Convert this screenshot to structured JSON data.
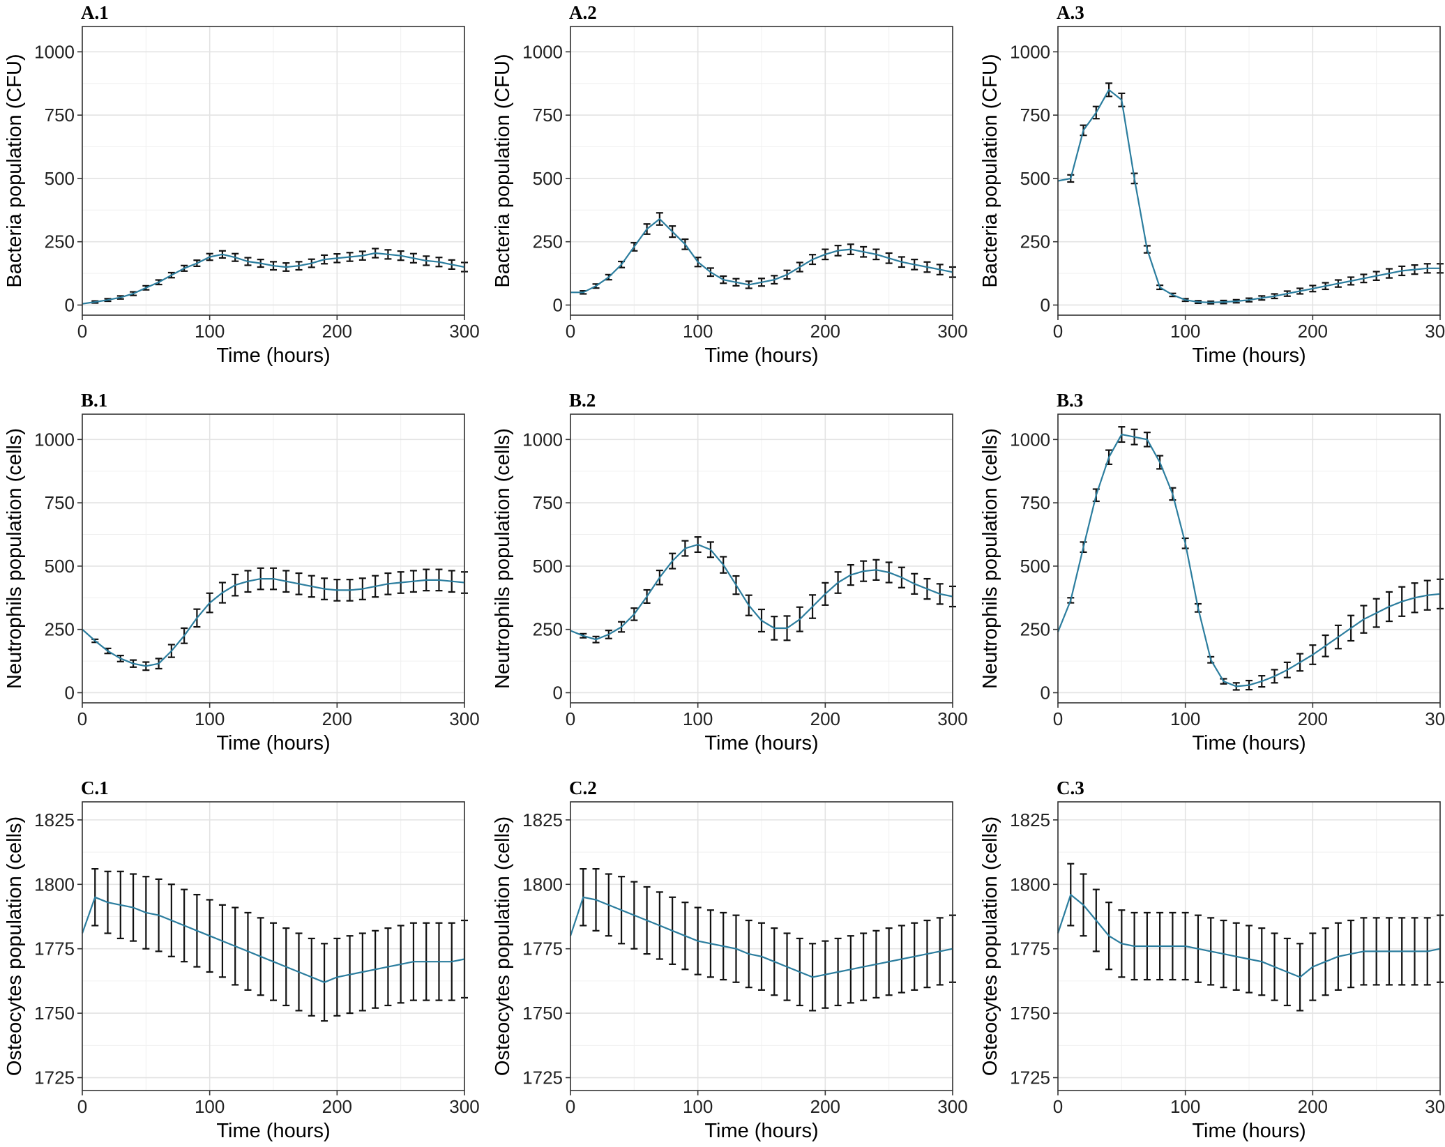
{
  "figure": {
    "series_color": "#2b7d9e",
    "errorbar_color": "#111111",
    "grid_color": "#e3e3e3"
  },
  "chart_data": [
    {
      "id": "A1",
      "panel": "A.1",
      "type": "line",
      "xlabel": "Time (hours)",
      "ylabel": "Bacteria population (CFU)",
      "xlim": [
        0,
        300
      ],
      "ylim": [
        -40,
        1100
      ],
      "xticks": [
        0,
        100,
        200,
        300
      ],
      "yticks": [
        0,
        250,
        500,
        750,
        1000
      ],
      "x": [
        0,
        10,
        20,
        30,
        40,
        50,
        60,
        70,
        80,
        90,
        100,
        110,
        120,
        130,
        140,
        150,
        160,
        170,
        180,
        190,
        200,
        210,
        220,
        230,
        240,
        250,
        260,
        270,
        280,
        290,
        300
      ],
      "y": [
        5,
        12,
        20,
        30,
        45,
        68,
        90,
        118,
        145,
        165,
        190,
        200,
        188,
        172,
        165,
        155,
        150,
        155,
        165,
        180,
        185,
        190,
        195,
        205,
        200,
        195,
        185,
        175,
        170,
        160,
        150
      ],
      "err": [
        3,
        4,
        5,
        6,
        7,
        8,
        9,
        10,
        11,
        12,
        13,
        14,
        15,
        15,
        15,
        16,
        16,
        16,
        16,
        17,
        17,
        17,
        17,
        18,
        18,
        18,
        18,
        18,
        18,
        18,
        18
      ]
    },
    {
      "id": "A2",
      "panel": "A.2",
      "type": "line",
      "xlabel": "Time (hours)",
      "ylabel": "Bacteria population (CFU)",
      "xlim": [
        0,
        300
      ],
      "ylim": [
        -40,
        1100
      ],
      "xticks": [
        0,
        100,
        200,
        300
      ],
      "yticks": [
        0,
        250,
        500,
        750,
        1000
      ],
      "x": [
        0,
        10,
        20,
        30,
        40,
        50,
        60,
        70,
        80,
        90,
        100,
        110,
        120,
        130,
        140,
        150,
        160,
        170,
        180,
        190,
        200,
        210,
        220,
        230,
        240,
        250,
        260,
        270,
        280,
        290,
        300
      ],
      "y": [
        50,
        50,
        75,
        110,
        160,
        230,
        300,
        340,
        290,
        240,
        170,
        130,
        100,
        90,
        80,
        90,
        100,
        120,
        150,
        180,
        200,
        215,
        220,
        210,
        200,
        185,
        170,
        160,
        150,
        140,
        130
      ],
      "err": [
        5,
        6,
        8,
        10,
        12,
        16,
        20,
        24,
        22,
        20,
        18,
        16,
        14,
        14,
        14,
        15,
        16,
        17,
        18,
        19,
        20,
        20,
        20,
        20,
        20,
        20,
        20,
        20,
        20,
        20,
        20
      ]
    },
    {
      "id": "A3",
      "panel": "A.3",
      "type": "line",
      "xlabel": "Time (hours)",
      "ylabel": "Bacteria population (CFU)",
      "xlim": [
        0,
        300
      ],
      "ylim": [
        -40,
        1100
      ],
      "xticks": [
        0,
        100,
        200,
        300
      ],
      "yticks": [
        0,
        250,
        500,
        750,
        1000
      ],
      "x": [
        0,
        10,
        20,
        30,
        40,
        50,
        60,
        70,
        80,
        90,
        100,
        110,
        120,
        130,
        140,
        150,
        160,
        170,
        180,
        190,
        200,
        210,
        220,
        230,
        240,
        250,
        260,
        270,
        280,
        290,
        300
      ],
      "y": [
        490,
        500,
        690,
        760,
        850,
        810,
        500,
        220,
        70,
        40,
        20,
        12,
        10,
        12,
        15,
        20,
        28,
        35,
        45,
        55,
        65,
        75,
        85,
        95,
        105,
        115,
        125,
        135,
        140,
        145,
        145
      ],
      "err": [
        8,
        14,
        20,
        24,
        26,
        26,
        20,
        14,
        8,
        6,
        5,
        5,
        5,
        6,
        6,
        7,
        8,
        9,
        10,
        11,
        12,
        13,
        14,
        15,
        16,
        17,
        18,
        18,
        18,
        18,
        18
      ]
    },
    {
      "id": "B1",
      "panel": "B.1",
      "type": "line",
      "xlabel": "Time (hours)",
      "ylabel": "Neutrophils population (cells)",
      "xlim": [
        0,
        300
      ],
      "ylim": [
        -40,
        1100
      ],
      "xticks": [
        0,
        100,
        200,
        300
      ],
      "yticks": [
        0,
        250,
        500,
        750,
        1000
      ],
      "x": [
        0,
        10,
        20,
        30,
        40,
        50,
        60,
        70,
        80,
        90,
        100,
        110,
        120,
        130,
        140,
        150,
        160,
        170,
        180,
        190,
        200,
        210,
        220,
        230,
        240,
        250,
        260,
        270,
        280,
        290,
        300
      ],
      "y": [
        250,
        205,
        165,
        135,
        115,
        105,
        115,
        165,
        225,
        295,
        355,
        395,
        425,
        440,
        450,
        450,
        440,
        430,
        420,
        410,
        405,
        405,
        410,
        420,
        430,
        435,
        440,
        445,
        445,
        440,
        435
      ],
      "err": [
        3,
        6,
        10,
        12,
        14,
        16,
        20,
        25,
        30,
        35,
        38,
        40,
        42,
        42,
        42,
        42,
        42,
        42,
        42,
        42,
        42,
        42,
        42,
        42,
        42,
        42,
        42,
        42,
        42,
        42,
        42
      ]
    },
    {
      "id": "B2",
      "panel": "B.2",
      "type": "line",
      "xlabel": "Time (hours)",
      "ylabel": "Neutrophils population (cells)",
      "xlim": [
        0,
        300
      ],
      "ylim": [
        -40,
        1100
      ],
      "xticks": [
        0,
        100,
        200,
        300
      ],
      "yticks": [
        0,
        250,
        500,
        750,
        1000
      ],
      "x": [
        0,
        10,
        20,
        30,
        40,
        50,
        60,
        70,
        80,
        90,
        100,
        110,
        120,
        130,
        140,
        150,
        160,
        170,
        180,
        190,
        200,
        210,
        220,
        230,
        240,
        250,
        260,
        270,
        280,
        290,
        300
      ],
      "y": [
        245,
        225,
        210,
        230,
        260,
        310,
        380,
        455,
        520,
        570,
        585,
        565,
        505,
        425,
        345,
        285,
        255,
        255,
        290,
        340,
        390,
        435,
        465,
        480,
        485,
        475,
        455,
        430,
        410,
        390,
        380
      ],
      "err": [
        3,
        8,
        12,
        16,
        20,
        24,
        26,
        28,
        30,
        30,
        30,
        30,
        32,
        36,
        40,
        44,
        46,
        48,
        48,
        46,
        44,
        42,
        40,
        40,
        40,
        40,
        40,
        40,
        40,
        40,
        40
      ]
    },
    {
      "id": "B3",
      "panel": "B.3",
      "type": "line",
      "xlabel": "Time (hours)",
      "ylabel": "Neutrophils population (cells)",
      "xlim": [
        0,
        300
      ],
      "ylim": [
        -40,
        1100
      ],
      "xticks": [
        0,
        100,
        200,
        300
      ],
      "yticks": [
        0,
        250,
        500,
        750,
        1000
      ],
      "x": [
        0,
        10,
        20,
        30,
        40,
        50,
        60,
        70,
        80,
        90,
        100,
        110,
        120,
        130,
        140,
        150,
        160,
        170,
        180,
        190,
        200,
        210,
        220,
        230,
        240,
        250,
        260,
        270,
        280,
        290,
        300
      ],
      "y": [
        240,
        365,
        575,
        780,
        930,
        1020,
        1010,
        1000,
        910,
        785,
        590,
        335,
        130,
        45,
        25,
        30,
        45,
        65,
        90,
        120,
        150,
        185,
        220,
        255,
        290,
        315,
        340,
        360,
        375,
        385,
        390
      ],
      "err": [
        5,
        10,
        20,
        24,
        28,
        30,
        30,
        28,
        26,
        24,
        20,
        16,
        12,
        10,
        14,
        18,
        22,
        26,
        30,
        34,
        38,
        42,
        46,
        50,
        54,
        56,
        58,
        58,
        58,
        58,
        58
      ]
    },
    {
      "id": "C1",
      "panel": "C.1",
      "type": "line",
      "xlabel": "Time (hours)",
      "ylabel": "Osteocytes population (cells)",
      "xlim": [
        0,
        300
      ],
      "ylim": [
        1720,
        1832
      ],
      "xticks": [
        0,
        100,
        200,
        300
      ],
      "yticks": [
        1725,
        1750,
        1775,
        1800,
        1825
      ],
      "x": [
        0,
        10,
        20,
        30,
        40,
        50,
        60,
        70,
        80,
        90,
        100,
        110,
        120,
        130,
        140,
        150,
        160,
        170,
        180,
        190,
        200,
        210,
        220,
        230,
        240,
        250,
        260,
        270,
        280,
        290,
        300
      ],
      "y": [
        1781,
        1795,
        1793,
        1792,
        1791,
        1789,
        1788,
        1786,
        1784,
        1782,
        1780,
        1778,
        1776,
        1774,
        1772,
        1770,
        1768,
        1766,
        1764,
        1762,
        1764,
        1765,
        1766,
        1767,
        1768,
        1769,
        1770,
        1770,
        1770,
        1770,
        1771
      ],
      "err": [
        1,
        11,
        12,
        13,
        13,
        14,
        14,
        14,
        14,
        14,
        14,
        14,
        15,
        15,
        15,
        15,
        15,
        15,
        15,
        15,
        15,
        15,
        15,
        15,
        15,
        15,
        15,
        15,
        15,
        15,
        15
      ]
    },
    {
      "id": "C2",
      "panel": "C.2",
      "type": "line",
      "xlabel": "Time (hours)",
      "ylabel": "Osteocytes population (cells)",
      "xlim": [
        0,
        300
      ],
      "ylim": [
        1720,
        1832
      ],
      "xticks": [
        0,
        100,
        200,
        300
      ],
      "yticks": [
        1725,
        1750,
        1775,
        1800,
        1825
      ],
      "x": [
        0,
        10,
        20,
        30,
        40,
        50,
        60,
        70,
        80,
        90,
        100,
        110,
        120,
        130,
        140,
        150,
        160,
        170,
        180,
        190,
        200,
        210,
        220,
        230,
        240,
        250,
        260,
        270,
        280,
        290,
        300
      ],
      "y": [
        1780,
        1795,
        1794,
        1792,
        1790,
        1788,
        1786,
        1784,
        1782,
        1780,
        1778,
        1777,
        1776,
        1775,
        1773,
        1772,
        1770,
        1768,
        1766,
        1764,
        1765,
        1766,
        1767,
        1768,
        1769,
        1770,
        1771,
        1772,
        1773,
        1774,
        1775
      ],
      "err": [
        1,
        11,
        12,
        12,
        13,
        13,
        13,
        13,
        13,
        13,
        13,
        13,
        13,
        13,
        13,
        13,
        13,
        13,
        13,
        13,
        13,
        13,
        13,
        13,
        13,
        13,
        13,
        13,
        13,
        13,
        13
      ]
    },
    {
      "id": "C3",
      "panel": "C.3",
      "type": "line",
      "xlabel": "Time (hours)",
      "ylabel": "Osteocytes population (cells)",
      "xlim": [
        0,
        300
      ],
      "ylim": [
        1720,
        1832
      ],
      "xticks": [
        0,
        100,
        200,
        300
      ],
      "yticks": [
        1725,
        1750,
        1775,
        1800,
        1825
      ],
      "x": [
        0,
        10,
        20,
        30,
        40,
        50,
        60,
        70,
        80,
        90,
        100,
        110,
        120,
        130,
        140,
        150,
        160,
        170,
        180,
        190,
        200,
        210,
        220,
        230,
        240,
        250,
        260,
        270,
        280,
        290,
        300
      ],
      "y": [
        1781,
        1796,
        1792,
        1786,
        1780,
        1777,
        1776,
        1776,
        1776,
        1776,
        1776,
        1775,
        1774,
        1773,
        1772,
        1771,
        1770,
        1768,
        1766,
        1764,
        1768,
        1770,
        1772,
        1773,
        1774,
        1774,
        1774,
        1774,
        1774,
        1774,
        1775
      ],
      "err": [
        1,
        12,
        12,
        12,
        13,
        13,
        13,
        13,
        13,
        13,
        13,
        13,
        13,
        13,
        13,
        13,
        13,
        13,
        13,
        13,
        13,
        13,
        13,
        13,
        13,
        13,
        13,
        13,
        13,
        13,
        13
      ]
    }
  ]
}
